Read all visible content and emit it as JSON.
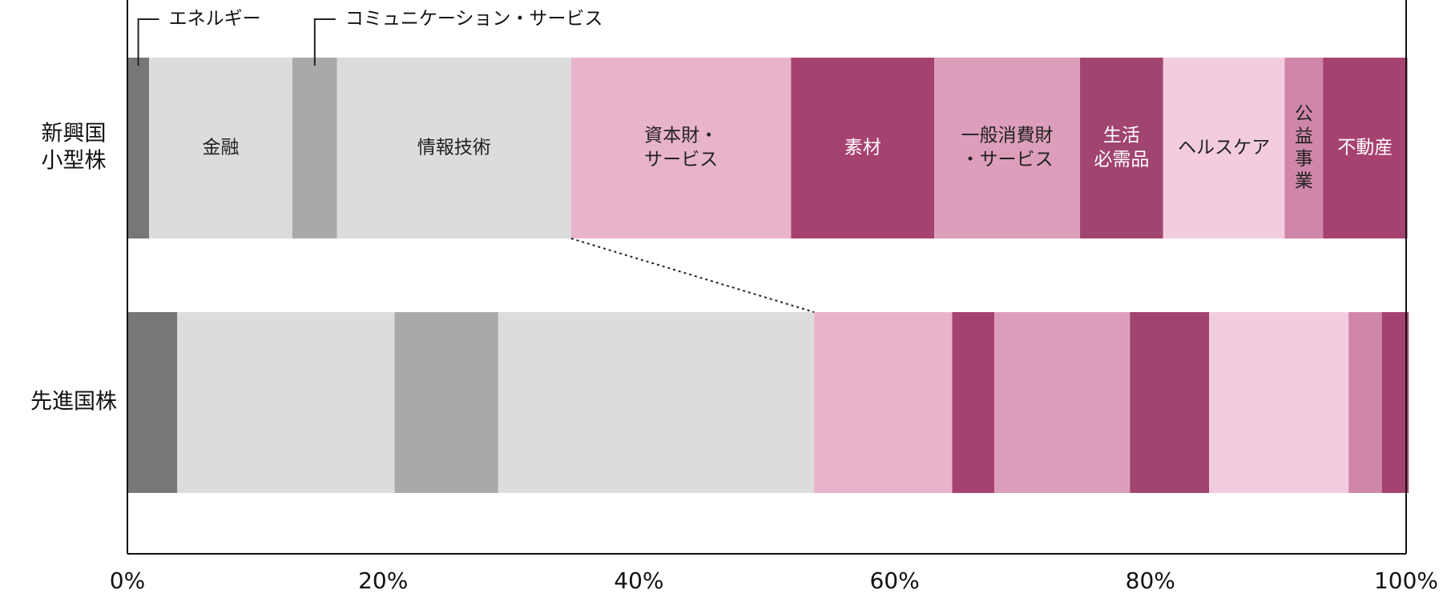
{
  "chart_data": {
    "type": "bar",
    "orientation": "horizontal",
    "stacked": true,
    "normalized": true,
    "xlim": [
      0,
      100
    ],
    "x_ticks": [
      "0%",
      "20%",
      "40%",
      "60%",
      "80%",
      "100%"
    ],
    "categories": [
      [
        "新興国",
        "小型株"
      ],
      [
        "先進国株"
      ]
    ],
    "series": [
      {
        "name": "エネルギー",
        "label_lines": [],
        "values": [
          1.7,
          3.9
        ],
        "color": "#777777",
        "text_color": "#222222"
      },
      {
        "name": "金融",
        "label_lines": [
          "金融"
        ],
        "values": [
          11.2,
          17.0
        ],
        "color": "#dcdcdc",
        "text_color": "#222222"
      },
      {
        "name": "コミュニケーション・サービス",
        "label_lines": [],
        "values": [
          3.5,
          8.1
        ],
        "color": "#a9a9a9",
        "text_color": "#222222"
      },
      {
        "name": "情報技術",
        "label_lines": [
          "情報技術"
        ],
        "values": [
          18.3,
          24.7
        ],
        "color": "#dcdcdc",
        "text_color": "#222222"
      },
      {
        "name": "資本財・サービス",
        "label_lines": [
          "資本財・",
          "サービス"
        ],
        "values": [
          17.2,
          10.8
        ],
        "color": "#e8b4cb",
        "text_color": "#222222"
      },
      {
        "name": "素材",
        "label_lines": [
          "素材"
        ],
        "values": [
          11.2,
          3.3
        ],
        "color": "#a64270",
        "text_color": "#ffffff"
      },
      {
        "name": "一般消費財・サービス",
        "label_lines": [
          "一般消費財",
          "・サービス"
        ],
        "values": [
          11.4,
          10.6
        ],
        "color": "#dc9ebb",
        "text_color": "#222222"
      },
      {
        "name": "生活必需品",
        "label_lines": [
          "生活",
          "必需品"
        ],
        "values": [
          6.5,
          6.2
        ],
        "color": "#a0456f",
        "text_color": "#ffffff"
      },
      {
        "name": "ヘルスケア",
        "label_lines": [
          "ヘルスケア"
        ],
        "values": [
          9.5,
          10.9
        ],
        "color": "#f3cddf",
        "text_color": "#222222"
      },
      {
        "name": "公益事業",
        "label_lines": [
          "公",
          "益",
          "事",
          "業"
        ],
        "values": [
          3.0,
          2.6
        ],
        "color": "#cf87a9",
        "text_color": "#222222"
      },
      {
        "name": "不動産",
        "label_lines": [
          "不動産"
        ],
        "values": [
          6.6,
          2.1
        ],
        "color": "#a64270",
        "text_color": "#ffffff"
      }
    ],
    "callouts": [
      {
        "text": "エネルギー",
        "series_index": 0,
        "row": 0
      },
      {
        "text": "コミュニケーション・サービス",
        "series_index": 2,
        "row": 0
      }
    ],
    "grid": false,
    "legend": "none"
  }
}
